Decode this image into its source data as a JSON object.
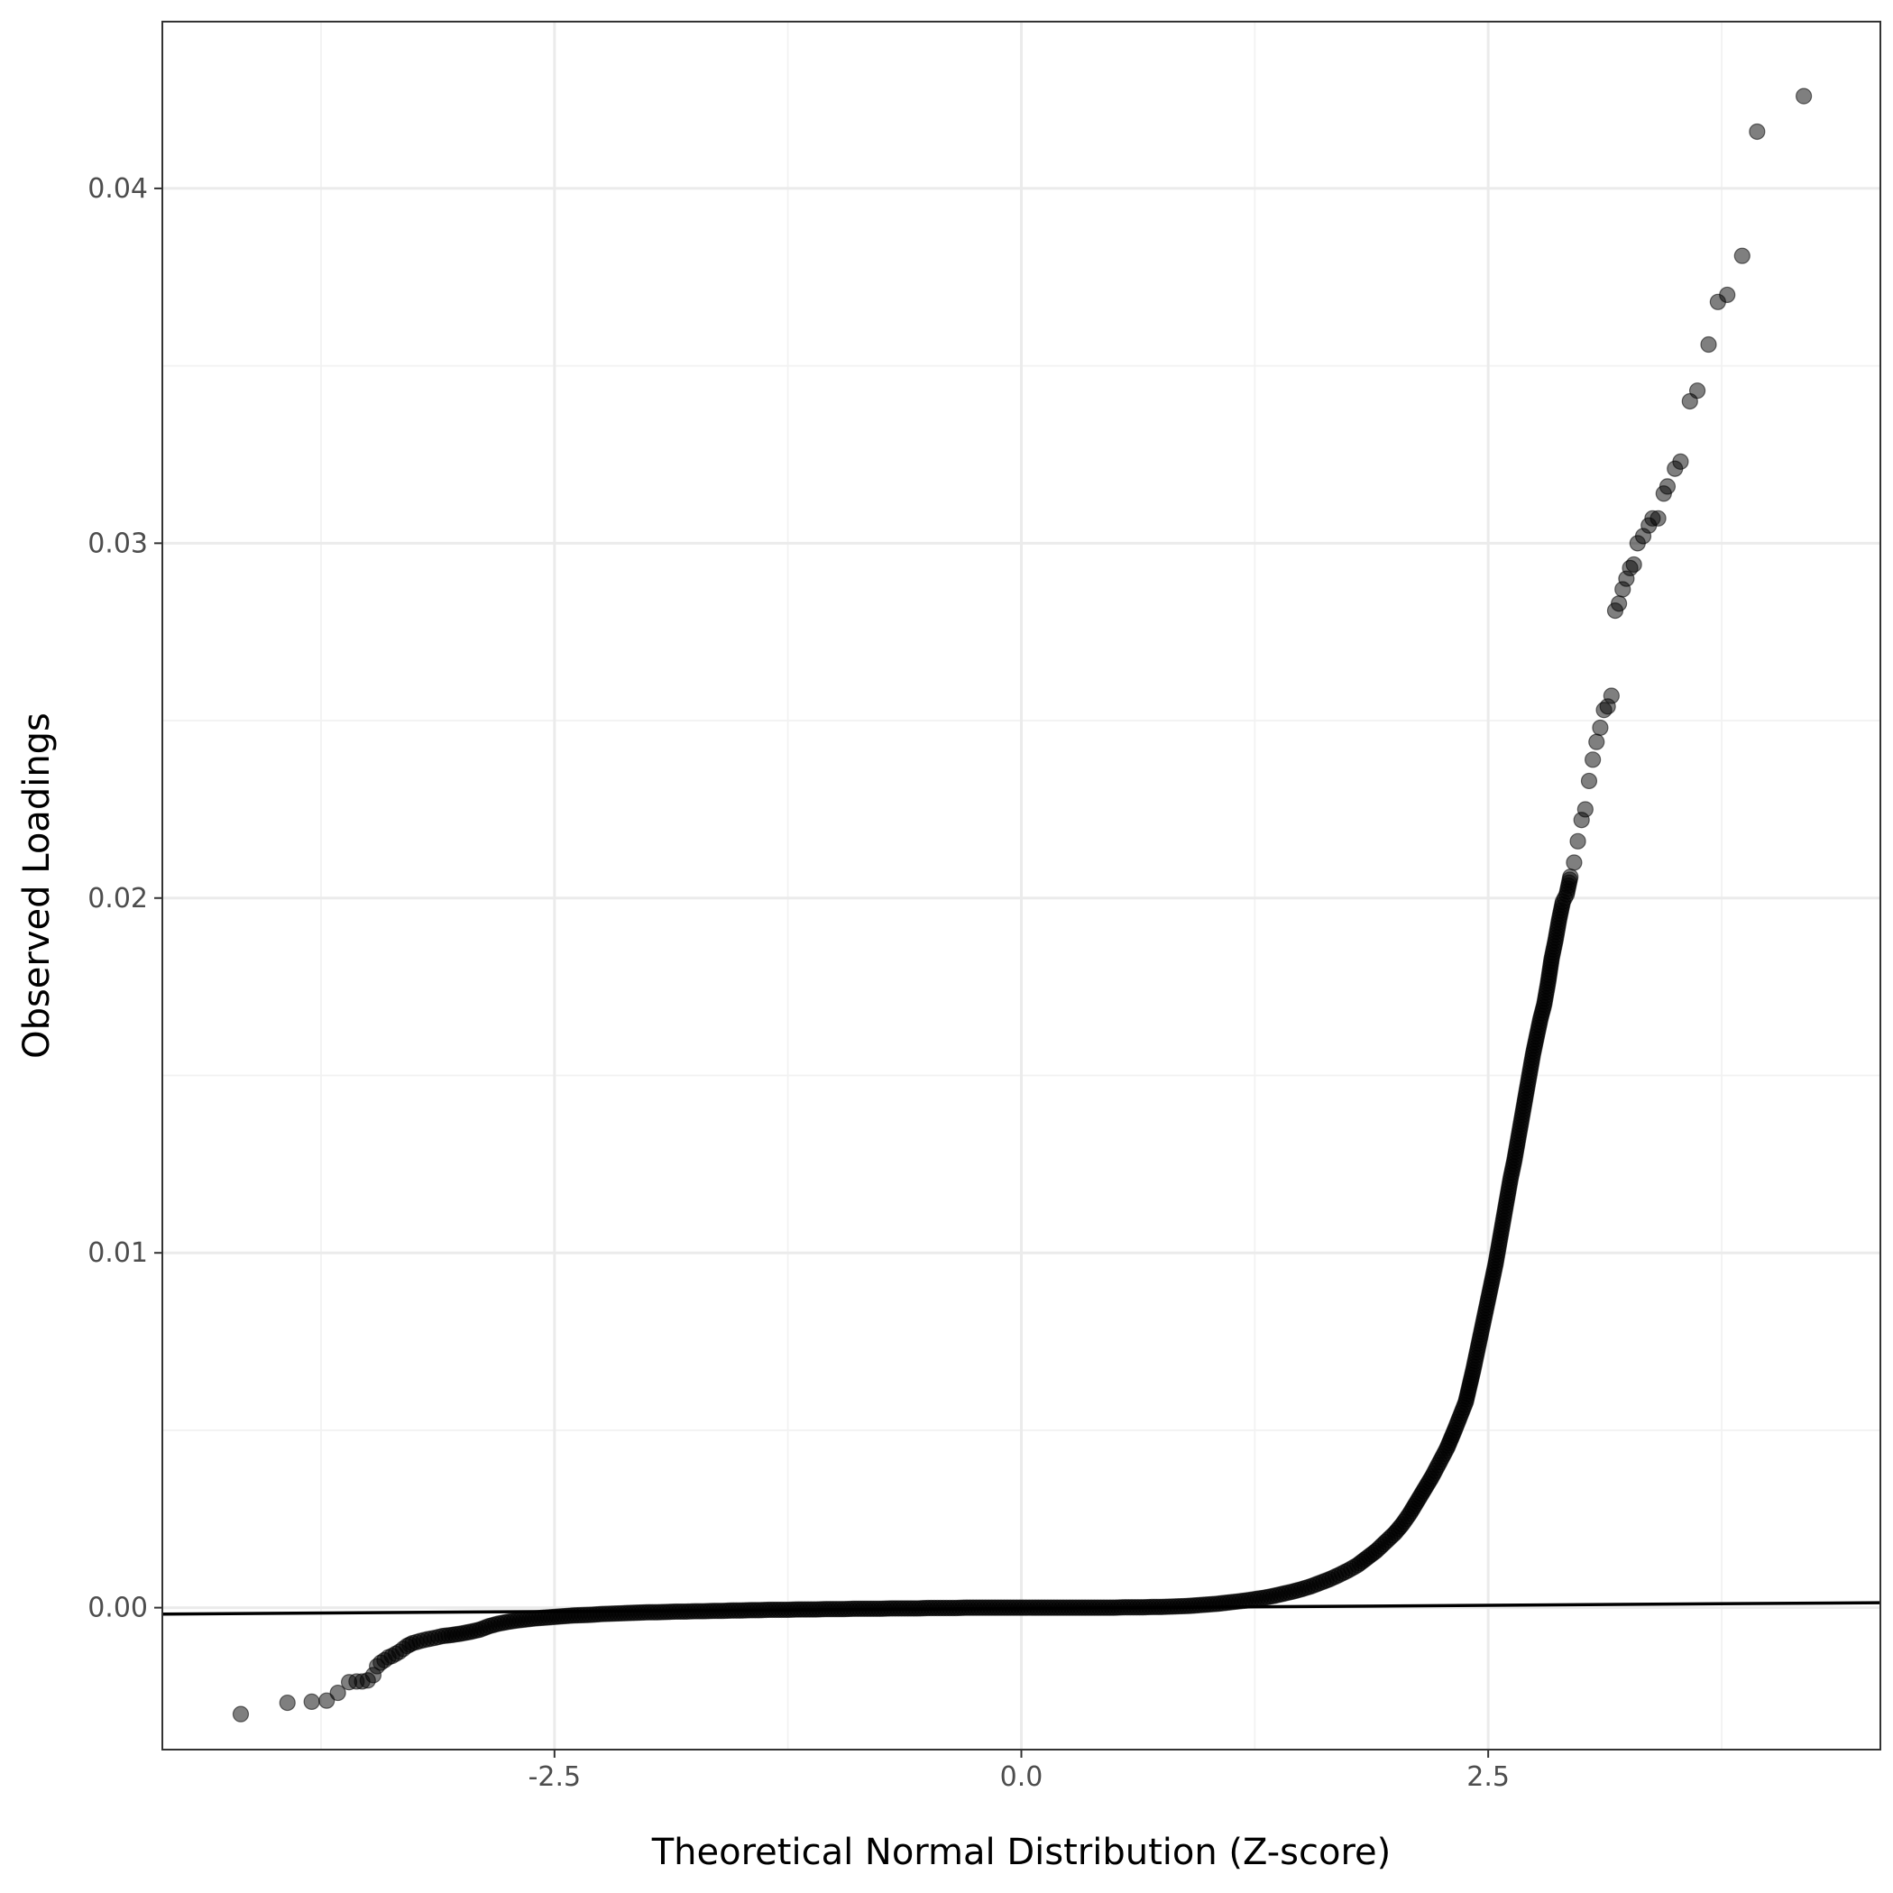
{
  "chart_data": {
    "type": "scatter",
    "title": "",
    "xlabel": "Theoretical Normal Distribution (Z-score)",
    "ylabel": "Observed Loadings",
    "xlim": [
      -4.6,
      4.6
    ],
    "ylim": [
      -0.004,
      0.0447
    ],
    "x_ticks": [
      -2.5,
      0.0,
      2.5
    ],
    "x_tick_labels": [
      "-2.5",
      "0.0",
      "2.5"
    ],
    "y_ticks": [
      0.0,
      0.01,
      0.02,
      0.03,
      0.04
    ],
    "y_tick_labels": [
      "0.00",
      "0.01",
      "0.02",
      "0.03",
      "0.04"
    ],
    "grid": true,
    "legend": "none",
    "reference_line": {
      "x": [
        -4.6,
        4.6
      ],
      "y": [
        -0.00018,
        0.00014
      ]
    },
    "point_color": "#000000",
    "series": [
      {
        "values_x": [
          -4.18,
          -3.93,
          -3.8,
          -3.72,
          -3.66,
          -3.6,
          -3.56,
          -3.53,
          -3.5,
          -3.47,
          -3.45,
          -3.43,
          -3.41,
          -3.39,
          -3.37,
          -3.35,
          -3.33,
          -3.31,
          -3.29,
          -3.26,
          -3.22,
          -3.18,
          -3.14,
          -3.1,
          -3.05,
          -3.0,
          -2.95,
          -2.9,
          -2.85,
          -2.8,
          -2.75,
          -2.7,
          -2.65,
          -2.6,
          -2.55,
          -2.5,
          -2.45,
          -2.4,
          -2.35,
          -2.3,
          -2.25,
          -2.2,
          -2.15,
          -2.1,
          -2.05,
          -2.0,
          -1.95,
          -1.9,
          -1.85,
          -1.8,
          -1.75,
          -1.7,
          -1.65,
          -1.6,
          -1.55,
          -1.5,
          -1.45,
          -1.4,
          -1.35,
          -1.3,
          -1.25,
          -1.2,
          -1.15,
          -1.1,
          -1.05,
          -1.0,
          -0.95,
          -0.9,
          -0.85,
          -0.8,
          -0.75,
          -0.7,
          -0.65,
          -0.6,
          -0.55,
          -0.5,
          -0.45,
          -0.4,
          -0.35,
          -0.3,
          -0.25,
          -0.2,
          -0.15,
          -0.1,
          -0.05,
          0.0,
          0.05,
          0.1,
          0.15,
          0.2,
          0.25,
          0.3,
          0.35,
          0.4,
          0.45,
          0.5,
          0.55,
          0.6,
          0.65,
          0.7,
          0.75,
          0.8,
          0.85,
          0.9,
          0.95,
          1.0,
          1.05,
          1.1,
          1.15,
          1.2,
          1.25,
          1.3,
          1.35,
          1.4,
          1.45,
          1.5,
          1.55,
          1.6,
          1.65,
          1.7,
          1.75,
          1.8,
          1.85,
          1.9,
          1.95,
          2.0,
          2.04,
          2.08,
          2.12,
          2.16,
          2.2,
          2.24,
          2.28,
          2.32,
          2.35,
          2.38,
          2.4,
          2.42,
          2.44,
          2.46,
          2.48,
          2.5,
          2.52,
          2.54,
          2.56,
          2.58,
          2.6,
          2.62,
          2.64,
          2.66,
          2.68,
          2.7,
          2.72,
          2.74,
          2.76,
          2.78,
          2.8,
          2.82,
          2.84,
          2.86,
          2.88,
          2.9,
          2.92,
          2.94,
          2.96,
          2.98,
          3.0,
          3.02,
          3.04,
          3.06,
          3.08,
          3.1,
          3.12,
          3.14,
          3.16,
          3.18,
          3.2,
          3.22,
          3.24,
          3.26,
          3.28,
          3.3,
          3.33,
          3.36,
          3.38,
          3.41,
          3.44,
          3.46,
          3.5,
          3.53,
          3.58,
          3.62,
          3.68,
          3.73,
          3.78,
          3.86,
          3.94,
          4.19
        ],
        "values_y": [
          -0.003,
          -0.00268,
          -0.00265,
          -0.00262,
          -0.0024,
          -0.0021,
          -0.00208,
          -0.00208,
          -0.00205,
          -0.0019,
          -0.00165,
          -0.00155,
          -0.00148,
          -0.0014,
          -0.00136,
          -0.0013,
          -0.00124,
          -0.00116,
          -0.00108,
          -0.001,
          -0.00094,
          -0.00089,
          -0.00085,
          -0.0008,
          -0.00077,
          -0.00073,
          -0.00068,
          -0.00062,
          -0.00052,
          -0.00045,
          -0.0004,
          -0.00036,
          -0.00033,
          -0.0003,
          -0.00028,
          -0.00026,
          -0.00024,
          -0.00022,
          -0.00021,
          -0.0002,
          -0.00018,
          -0.00017,
          -0.00016,
          -0.00015,
          -0.00014,
          -0.00013,
          -0.00013,
          -0.00012,
          -0.00011,
          -0.00011,
          -0.0001,
          -0.0001,
          -9e-05,
          -9e-05,
          -8e-05,
          -8e-05,
          -7e-05,
          -7e-05,
          -6e-05,
          -6e-05,
          -6e-05,
          -5e-05,
          -5e-05,
          -5e-05,
          -4e-05,
          -4e-05,
          -4e-05,
          -3e-05,
          -3e-05,
          -3e-05,
          -3e-05,
          -2e-05,
          -2e-05,
          -2e-05,
          -2e-05,
          -1e-05,
          -1e-05,
          -1e-05,
          -1e-05,
          0.0,
          0.0,
          0.0,
          0.0,
          0.0,
          0.0,
          0.0,
          0.0,
          0.0,
          0.0,
          0.0,
          0.0,
          0.0,
          0.0,
          0.0,
          0.0,
          0.0,
          1e-05,
          1e-05,
          1e-05,
          2e-05,
          2e-05,
          3e-05,
          4e-05,
          5e-05,
          7e-05,
          9e-05,
          0.00011,
          0.00014,
          0.00017,
          0.0002,
          0.00024,
          0.00028,
          0.00033,
          0.00039,
          0.00045,
          0.00052,
          0.0006,
          0.0007,
          0.0008,
          0.00092,
          0.00105,
          0.0012,
          0.0014,
          0.0016,
          0.00185,
          0.0021,
          0.00235,
          0.00265,
          0.003,
          0.00335,
          0.0037,
          0.0041,
          0.0045,
          0.005,
          0.0054,
          0.0058,
          0.00625,
          0.0067,
          0.0072,
          0.0077,
          0.0082,
          0.0087,
          0.0092,
          0.0097,
          0.0103,
          0.0109,
          0.0115,
          0.0121,
          0.0126,
          0.0132,
          0.0138,
          0.0144,
          0.015,
          0.0156,
          0.0161,
          0.0166,
          0.017,
          0.0176,
          0.0183,
          0.0188,
          0.0194,
          0.0199,
          0.0201,
          0.0206,
          0.021,
          0.0216,
          0.0222,
          0.0225,
          0.0233,
          0.0239,
          0.0244,
          0.0248,
          0.0253,
          0.0254,
          0.0257,
          0.0281,
          0.0283,
          0.0287,
          0.029,
          0.0293,
          0.0294,
          0.03,
          0.0302,
          0.0305,
          0.0307,
          0.0307,
          0.0314,
          0.0316,
          0.0321,
          0.0323,
          0.034,
          0.0343,
          0.0356,
          0.0368,
          0.037,
          0.0381,
          0.0416,
          0.0426
        ]
      }
    ]
  }
}
